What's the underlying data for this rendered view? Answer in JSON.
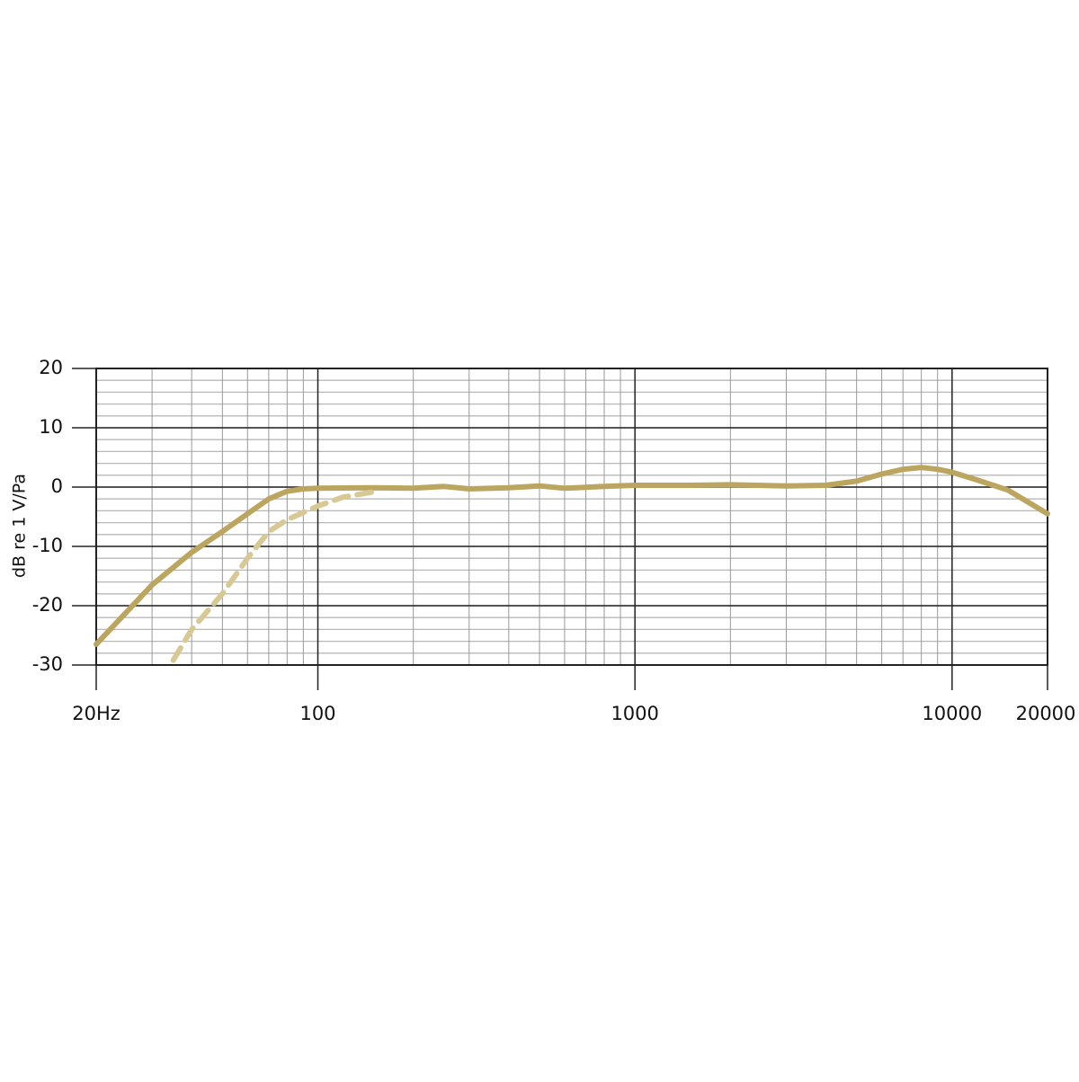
{
  "chart_data": {
    "type": "line",
    "ylabel": "dB re 1 V/Pa",
    "xscale": "log",
    "xlim": [
      20,
      20000
    ],
    "ylim": [
      -30,
      20
    ],
    "xticks": [
      {
        "value": 20,
        "label": "20Hz"
      },
      100,
      1000,
      10000,
      20000
    ],
    "yticks": [
      20,
      10,
      0,
      -10,
      -20,
      -30
    ],
    "grid": true,
    "series": [
      {
        "color": "#bba55f",
        "style": "solid",
        "x": [
          20,
          25,
          30,
          40,
          50,
          60,
          70,
          80,
          90,
          100,
          150,
          200,
          250,
          300,
          400,
          500,
          600,
          800,
          1000,
          1500,
          2000,
          3000,
          4000,
          5000,
          6000,
          7000,
          8000,
          9000,
          10000,
          12000,
          15000,
          20000
        ],
        "values": [
          -26.5,
          -21,
          -16.5,
          -11,
          -7.5,
          -4.5,
          -2,
          -0.7,
          -0.3,
          -0.2,
          -0.1,
          -0.2,
          0.1,
          -0.3,
          -0.1,
          0.2,
          -0.2,
          0.1,
          0.3,
          0.3,
          0.4,
          0.2,
          0.3,
          1,
          2.2,
          3,
          3.3,
          3,
          2.5,
          1.2,
          -0.5,
          -4.5
        ]
      },
      {
        "color": "#d8c893",
        "style": "dashed",
        "x": [
          35,
          40,
          50,
          60,
          70,
          80,
          100,
          120,
          150
        ],
        "values": [
          -29.2,
          -24,
          -18,
          -12,
          -7.5,
          -5.5,
          -3.2,
          -1.7,
          -0.8
        ]
      }
    ]
  }
}
